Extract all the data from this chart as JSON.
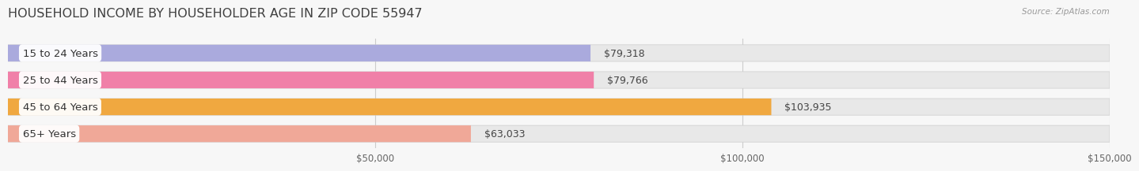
{
  "title": "HOUSEHOLD INCOME BY HOUSEHOLDER AGE IN ZIP CODE 55947",
  "source": "Source: ZipAtlas.com",
  "categories": [
    "15 to 24 Years",
    "25 to 44 Years",
    "45 to 64 Years",
    "65+ Years"
  ],
  "values": [
    79318,
    79766,
    103935,
    63033
  ],
  "bar_colors": [
    "#aaaadd",
    "#f080a8",
    "#f0a840",
    "#f0a898"
  ],
  "value_labels": [
    "$79,318",
    "$79,766",
    "$103,935",
    "$63,033"
  ],
  "xlim": [
    0,
    150000
  ],
  "xticks": [
    50000,
    100000,
    150000
  ],
  "xtick_labels": [
    "$50,000",
    "$100,000",
    "$150,000"
  ],
  "background_color": "#f7f7f7",
  "bar_bg_color": "#e8e8e8",
  "title_fontsize": 11.5,
  "bar_height": 0.62,
  "label_fontsize": 9.5,
  "value_fontsize": 9.0,
  "tick_fontsize": 8.5
}
